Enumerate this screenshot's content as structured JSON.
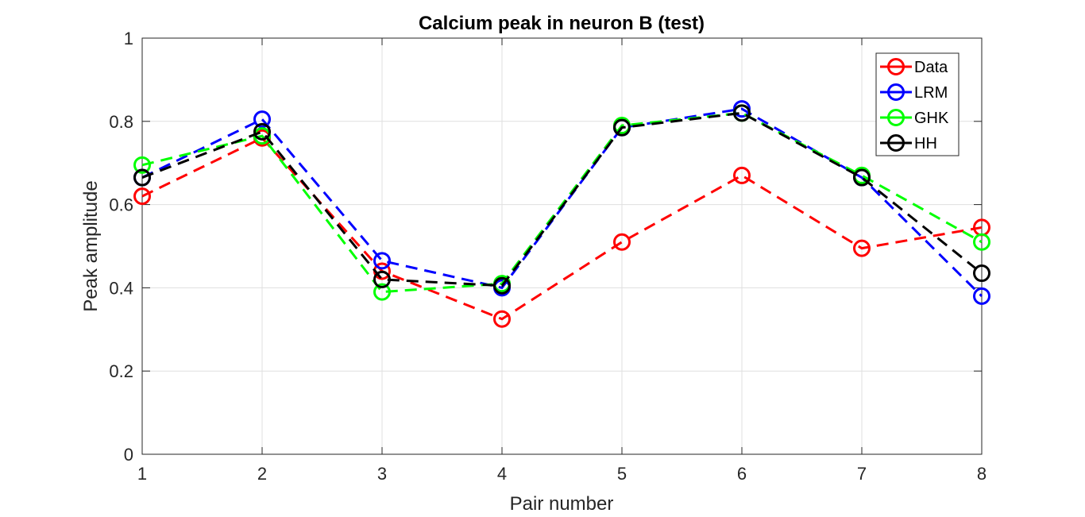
{
  "chart_data": {
    "type": "line",
    "title": "Calcium peak in neuron B (test)",
    "xlabel": "Pair number",
    "ylabel": "Peak amplitude",
    "x": [
      1,
      2,
      3,
      4,
      5,
      6,
      7,
      8
    ],
    "xlim": [
      1,
      8
    ],
    "ylim": [
      0,
      1
    ],
    "xticks": [
      "1",
      "2",
      "3",
      "4",
      "5",
      "6",
      "7",
      "8"
    ],
    "yticks": [
      "0",
      "0.2",
      "0.4",
      "0.6",
      "0.8",
      "1"
    ],
    "grid": true,
    "legend_position": "top-right",
    "series": [
      {
        "name": "Data",
        "color": "#ff0000",
        "values": [
          0.62,
          0.76,
          0.44,
          0.325,
          0.51,
          0.67,
          0.495,
          0.545
        ]
      },
      {
        "name": "LRM",
        "color": "#0000ff",
        "values": [
          0.665,
          0.805,
          0.465,
          0.4,
          0.785,
          0.83,
          0.665,
          0.38
        ]
      },
      {
        "name": "GHK",
        "color": "#00ff00",
        "values": [
          0.695,
          0.765,
          0.39,
          0.41,
          0.79,
          0.82,
          0.67,
          0.51
        ]
      },
      {
        "name": "HH",
        "color": "#000000",
        "values": [
          0.665,
          0.775,
          0.42,
          0.405,
          0.785,
          0.82,
          0.665,
          0.435
        ]
      }
    ]
  }
}
